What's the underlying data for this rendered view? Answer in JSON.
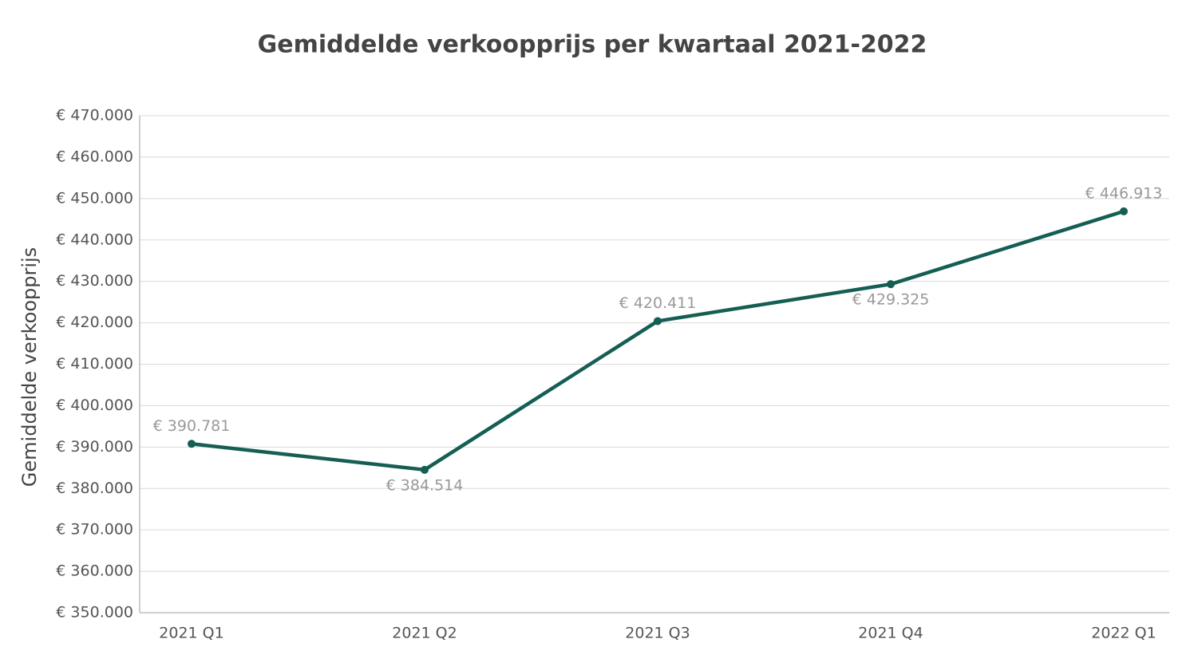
{
  "chart_data": {
    "type": "line",
    "title": "Gemiddelde verkoopprijs per kwartaal 2021-2022",
    "y_label": "Gemiddelde verkoopprijs",
    "categories": [
      "2021 Q1",
      "2021 Q2",
      "2021 Q3",
      "2021 Q4",
      "2022 Q1"
    ],
    "series": [
      {
        "name": "Gemiddelde verkoopprijs",
        "color": "#155e54",
        "values": [
          390781,
          384514,
          420411,
          429325,
          446913
        ],
        "value_labels": [
          "€ 390.781",
          "€ 384.514",
          "€ 420.411",
          "€ 429.325",
          "€ 446.913"
        ]
      }
    ],
    "ylim": [
      350000,
      470000
    ],
    "yticks": [
      {
        "value": 350000,
        "label": "€ 350.000"
      },
      {
        "value": 360000,
        "label": "€ 360.000"
      },
      {
        "value": 370000,
        "label": "€ 370.000"
      },
      {
        "value": 380000,
        "label": "€ 380.000"
      },
      {
        "value": 390000,
        "label": "€ 390.000"
      },
      {
        "value": 400000,
        "label": "€ 400.000"
      },
      {
        "value": 410000,
        "label": "€ 410.000"
      },
      {
        "value": 420000,
        "label": "€ 420.000"
      },
      {
        "value": 430000,
        "label": "€ 430.000"
      },
      {
        "value": 440000,
        "label": "€ 440.000"
      },
      {
        "value": 450000,
        "label": "€ 450.000"
      },
      {
        "value": 460000,
        "label": "€ 460.000"
      },
      {
        "value": 470000,
        "label": "€ 470.000"
      }
    ],
    "grid": true
  }
}
